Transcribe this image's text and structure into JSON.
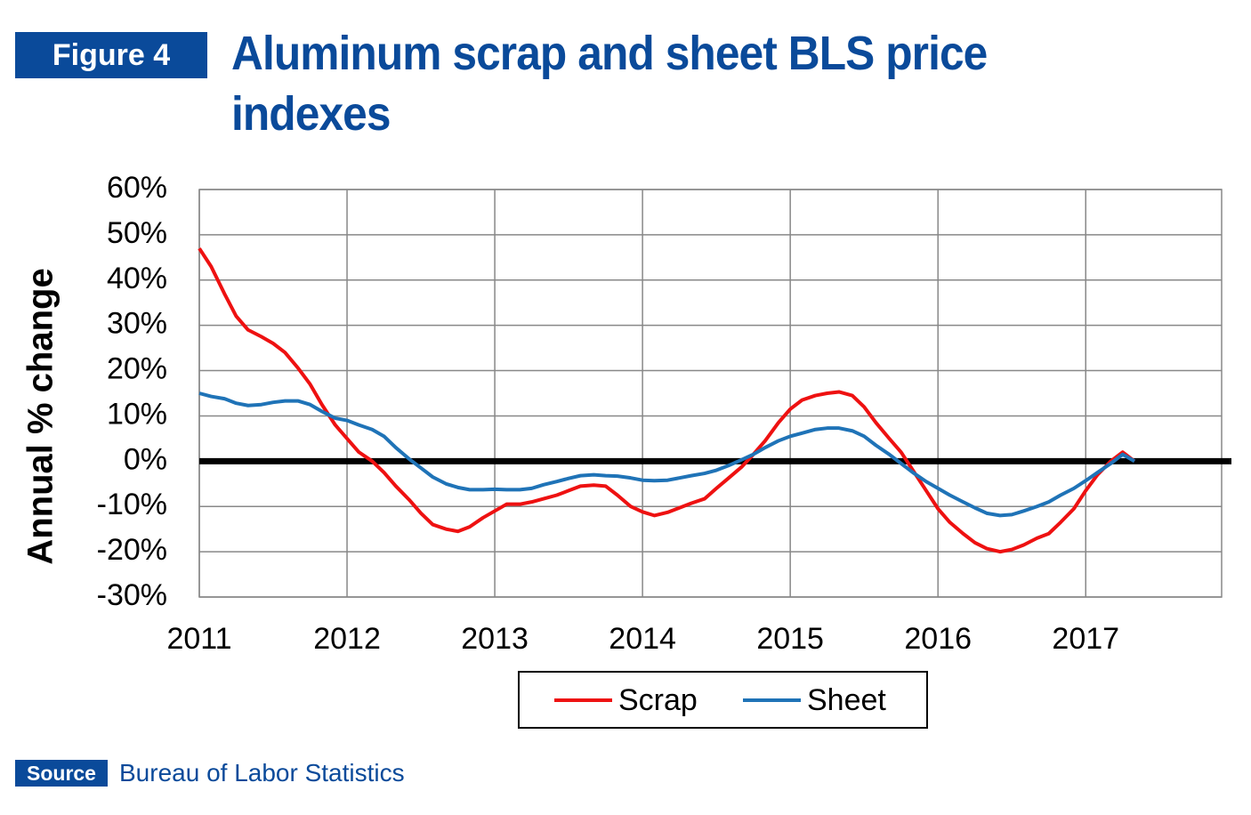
{
  "figure_label": "Figure 4",
  "source_label": "Source",
  "source": "Bureau of Labor Statistics",
  "chart_data": {
    "type": "line",
    "title": "Aluminum scrap and sheet BLS price indexes",
    "y_label": "Annual % change",
    "xlim": [
      2011,
      2017.92
    ],
    "xticks": [
      2011,
      2012,
      2013,
      2014,
      2015,
      2016,
      2017
    ],
    "ylim": [
      -30,
      60
    ],
    "yticks": [
      {
        "value": -30,
        "label": "-30%"
      },
      {
        "value": -20,
        "label": "-20%"
      },
      {
        "value": -10,
        "label": "-10%"
      },
      {
        "value": 0,
        "label": "0%"
      },
      {
        "value": 10,
        "label": "10%"
      },
      {
        "value": 20,
        "label": "20%"
      },
      {
        "value": 30,
        "label": "30%"
      },
      {
        "value": 40,
        "label": "40%"
      },
      {
        "value": 50,
        "label": "50%"
      },
      {
        "value": 60,
        "label": "60%"
      }
    ],
    "grid": true,
    "x": [
      2011.0,
      2011.08,
      2011.17,
      2011.25,
      2011.33,
      2011.42,
      2011.5,
      2011.58,
      2011.67,
      2011.75,
      2011.83,
      2011.92,
      2012.0,
      2012.08,
      2012.17,
      2012.25,
      2012.33,
      2012.42,
      2012.5,
      2012.58,
      2012.67,
      2012.75,
      2012.83,
      2012.92,
      2013.0,
      2013.08,
      2013.17,
      2013.25,
      2013.33,
      2013.42,
      2013.5,
      2013.58,
      2013.67,
      2013.75,
      2013.83,
      2013.92,
      2014.0,
      2014.08,
      2014.17,
      2014.25,
      2014.33,
      2014.42,
      2014.5,
      2014.58,
      2014.67,
      2014.75,
      2014.83,
      2014.92,
      2015.0,
      2015.08,
      2015.17,
      2015.25,
      2015.33,
      2015.42,
      2015.5,
      2015.58,
      2015.67,
      2015.75,
      2015.83,
      2015.92,
      2016.0,
      2016.08,
      2016.17,
      2016.25,
      2016.33,
      2016.42,
      2016.5,
      2016.58,
      2016.67,
      2016.75,
      2016.83,
      2016.92,
      2017.0,
      2017.08,
      2017.17,
      2017.25,
      2017.33
    ],
    "series": [
      {
        "name": "Scrap",
        "color": "#ee1111",
        "values": [
          47,
          43,
          37,
          32,
          29,
          27.5,
          26,
          24,
          20.5,
          17,
          12.5,
          8,
          5,
          2,
          0,
          -2.5,
          -5.5,
          -8.5,
          -11.5,
          -14,
          -15,
          -15.5,
          -14.5,
          -12.5,
          -11,
          -9.5,
          -9.5,
          -9,
          -8.3,
          -7.5,
          -6.5,
          -5.5,
          -5.3,
          -5.5,
          -7.5,
          -10,
          -11.2,
          -12,
          -11.3,
          -10.3,
          -9.3,
          -8.3,
          -6,
          -3.8,
          -1.3,
          1.5,
          4.5,
          8.5,
          11.5,
          13.5,
          14.5,
          15,
          15.3,
          14.5,
          12,
          8.5,
          5,
          2,
          -2,
          -6.5,
          -10.5,
          -13.5,
          -16,
          -18,
          -19.3,
          -20,
          -19.5,
          -18.5,
          -17,
          -16,
          -13.5,
          -10.5,
          -6.5,
          -3,
          0,
          2,
          0
        ]
      },
      {
        "name": "Sheet",
        "color": "#1f73b7",
        "values": [
          15,
          14.3,
          13.8,
          12.8,
          12.3,
          12.5,
          13,
          13.3,
          13.3,
          12.5,
          11,
          9.5,
          9,
          8,
          7,
          5.5,
          3,
          0.5,
          -1.5,
          -3.5,
          -5,
          -5.8,
          -6.3,
          -6.3,
          -6.2,
          -6.3,
          -6.3,
          -6,
          -5.2,
          -4.5,
          -3.8,
          -3.2,
          -3,
          -3.2,
          -3.3,
          -3.7,
          -4.2,
          -4.3,
          -4.2,
          -3.7,
          -3.2,
          -2.7,
          -2,
          -1,
          0.3,
          1.5,
          3,
          4.5,
          5.5,
          6.2,
          7,
          7.3,
          7.3,
          6.7,
          5.5,
          3.5,
          1.5,
          -0.5,
          -2.5,
          -4.5,
          -6,
          -7.5,
          -9,
          -10.3,
          -11.5,
          -12,
          -11.8,
          -11,
          -10,
          -9,
          -7.5,
          -6,
          -4.3,
          -2.5,
          -0.5,
          1.5,
          0
        ]
      }
    ]
  }
}
